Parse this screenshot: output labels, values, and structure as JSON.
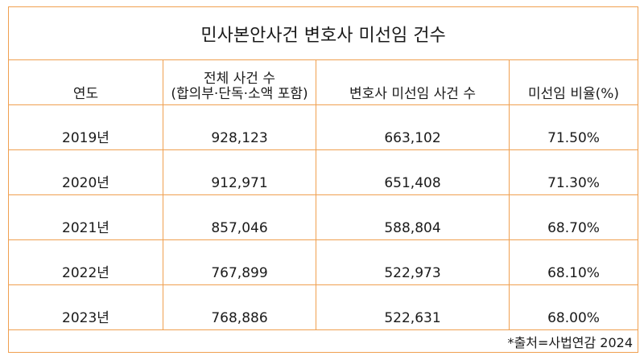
{
  "title": "민사본안사건 변호사 미선임 건수",
  "headers": {
    "year": "연도",
    "total_line1": "전체 사건 수",
    "total_line2": "(합의부·단독·소액 포함)",
    "unrepresented": "변호사 미선임 사건 수",
    "ratio": "미선임 비율(%)"
  },
  "rows": [
    {
      "year": "2019년",
      "total": "928,123",
      "unrepresented": "663,102",
      "ratio": "71.50%"
    },
    {
      "year": "2020년",
      "total": "912,971",
      "unrepresented": "651,408",
      "ratio": "71.30%"
    },
    {
      "year": "2021년",
      "total": "857,046",
      "unrepresented": "588,804",
      "ratio": "68.70%"
    },
    {
      "year": "2022년",
      "total": "767,899",
      "unrepresented": "522,973",
      "ratio": "68.10%"
    },
    {
      "year": "2023년",
      "total": "768,886",
      "unrepresented": "522,631",
      "ratio": "68.00%"
    }
  ],
  "source": "*출처=사법연감 2024",
  "colors": {
    "border": "#f0a050",
    "text": "#1a1a1a"
  }
}
